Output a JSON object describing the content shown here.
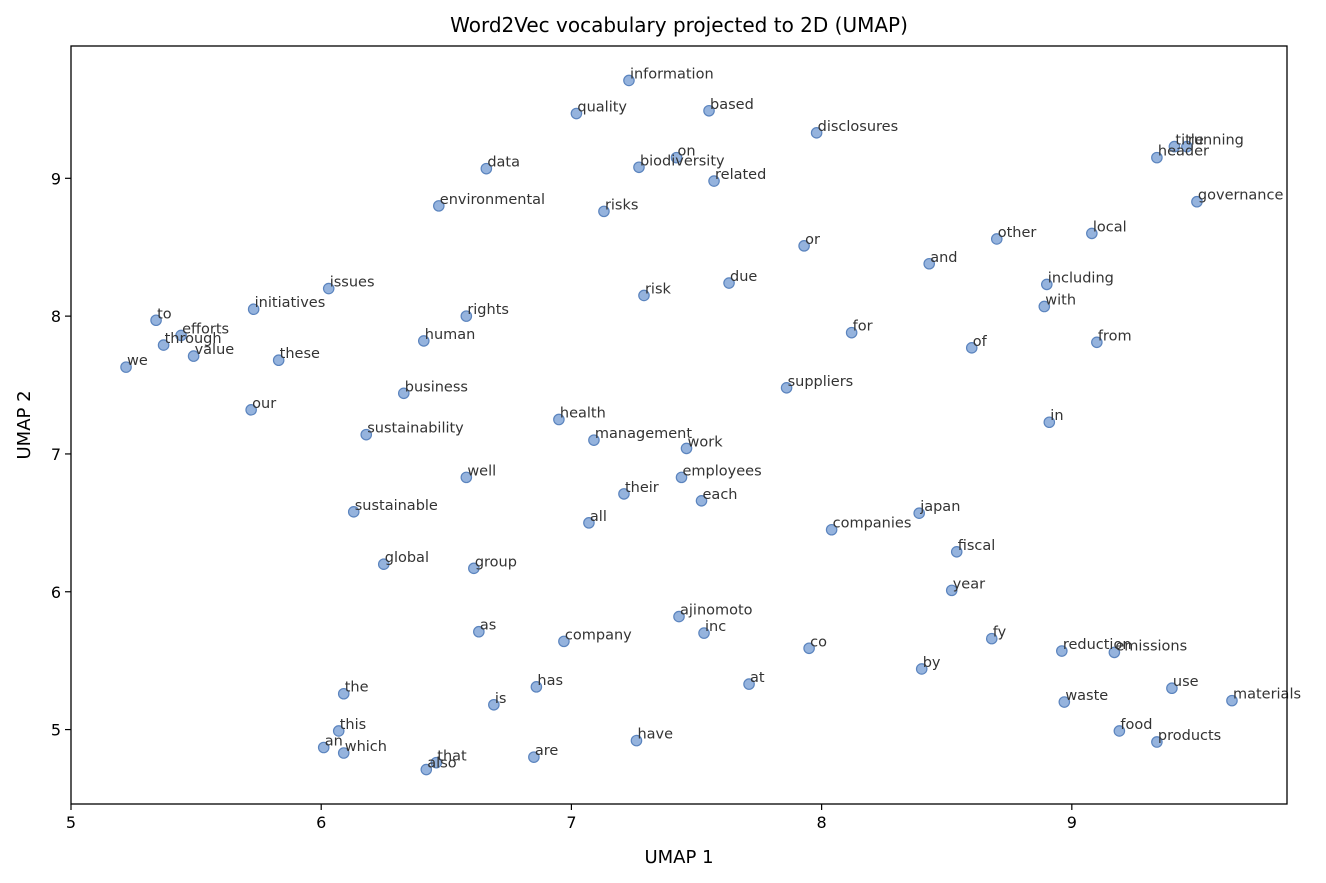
{
  "chart_data": {
    "type": "scatter",
    "title": "Word2Vec vocabulary projected to 2D (UMAP)",
    "xlabel": "UMAP 1",
    "ylabel": "UMAP 2",
    "xlim": [
      5.0,
      9.86
    ],
    "ylim": [
      4.46,
      9.96
    ],
    "xticks": [
      5,
      6,
      7,
      8,
      9
    ],
    "yticks": [
      5,
      6,
      7,
      8,
      9
    ],
    "grid": false,
    "point_color": "#7aa0d4",
    "points": [
      {
        "label": "information",
        "x": 7.23,
        "y": 9.71
      },
      {
        "label": "quality",
        "x": 7.02,
        "y": 9.47
      },
      {
        "label": "based",
        "x": 7.55,
        "y": 9.49
      },
      {
        "label": "disclosures",
        "x": 7.98,
        "y": 9.33
      },
      {
        "label": "on",
        "x": 7.42,
        "y": 9.15
      },
      {
        "label": "biodiversity",
        "x": 7.27,
        "y": 9.08
      },
      {
        "label": "data",
        "x": 6.66,
        "y": 9.07
      },
      {
        "label": "related",
        "x": 7.57,
        "y": 8.98
      },
      {
        "label": "title",
        "x": 9.41,
        "y": 9.23
      },
      {
        "label": "running",
        "x": 9.46,
        "y": 9.23
      },
      {
        "label": "header",
        "x": 9.34,
        "y": 9.15
      },
      {
        "label": "governance",
        "x": 9.5,
        "y": 8.83
      },
      {
        "label": "environmental",
        "x": 6.47,
        "y": 8.8
      },
      {
        "label": "risks",
        "x": 7.13,
        "y": 8.76
      },
      {
        "label": "or",
        "x": 7.93,
        "y": 8.51
      },
      {
        "label": "other",
        "x": 8.7,
        "y": 8.56
      },
      {
        "label": "local",
        "x": 9.08,
        "y": 8.6
      },
      {
        "label": "and",
        "x": 8.43,
        "y": 8.38
      },
      {
        "label": "due",
        "x": 7.63,
        "y": 8.24
      },
      {
        "label": "including",
        "x": 8.9,
        "y": 8.23
      },
      {
        "label": "issues",
        "x": 6.03,
        "y": 8.2
      },
      {
        "label": "risk",
        "x": 7.29,
        "y": 8.15
      },
      {
        "label": "with",
        "x": 8.89,
        "y": 8.07
      },
      {
        "label": "initiatives",
        "x": 5.73,
        "y": 8.05
      },
      {
        "label": "rights",
        "x": 6.58,
        "y": 8.0
      },
      {
        "label": "to",
        "x": 5.34,
        "y": 7.97
      },
      {
        "label": "efforts",
        "x": 5.44,
        "y": 7.86
      },
      {
        "label": "for",
        "x": 8.12,
        "y": 7.88
      },
      {
        "label": "human",
        "x": 6.41,
        "y": 7.82
      },
      {
        "label": "through",
        "x": 5.37,
        "y": 7.79
      },
      {
        "label": "from",
        "x": 9.1,
        "y": 7.81
      },
      {
        "label": "of",
        "x": 8.6,
        "y": 7.77
      },
      {
        "label": "value",
        "x": 5.49,
        "y": 7.71
      },
      {
        "label": "these",
        "x": 5.83,
        "y": 7.68
      },
      {
        "label": "we",
        "x": 5.22,
        "y": 7.63
      },
      {
        "label": "suppliers",
        "x": 7.86,
        "y": 7.48
      },
      {
        "label": "business",
        "x": 6.33,
        "y": 7.44
      },
      {
        "label": "our",
        "x": 5.72,
        "y": 7.32
      },
      {
        "label": "health",
        "x": 6.95,
        "y": 7.25
      },
      {
        "label": "in",
        "x": 8.91,
        "y": 7.23
      },
      {
        "label": "sustainability",
        "x": 6.18,
        "y": 7.14
      },
      {
        "label": "management",
        "x": 7.09,
        "y": 7.1
      },
      {
        "label": "work",
        "x": 7.46,
        "y": 7.04
      },
      {
        "label": "well",
        "x": 6.58,
        "y": 6.83
      },
      {
        "label": "employees",
        "x": 7.44,
        "y": 6.83
      },
      {
        "label": "their",
        "x": 7.21,
        "y": 6.71
      },
      {
        "label": "each",
        "x": 7.52,
        "y": 6.66
      },
      {
        "label": "sustainable",
        "x": 6.13,
        "y": 6.58
      },
      {
        "label": "japan",
        "x": 8.39,
        "y": 6.57
      },
      {
        "label": "all",
        "x": 7.07,
        "y": 6.5
      },
      {
        "label": "companies",
        "x": 8.04,
        "y": 6.45
      },
      {
        "label": "fiscal",
        "x": 8.54,
        "y": 6.29
      },
      {
        "label": "global",
        "x": 6.25,
        "y": 6.2
      },
      {
        "label": "group",
        "x": 6.61,
        "y": 6.17
      },
      {
        "label": "year",
        "x": 8.52,
        "y": 6.01
      },
      {
        "label": "ajinomoto",
        "x": 7.43,
        "y": 5.82
      },
      {
        "label": "as",
        "x": 6.63,
        "y": 5.71
      },
      {
        "label": "inc",
        "x": 7.53,
        "y": 5.7
      },
      {
        "label": "fy",
        "x": 8.68,
        "y": 5.66
      },
      {
        "label": "company",
        "x": 6.97,
        "y": 5.64
      },
      {
        "label": "co",
        "x": 7.95,
        "y": 5.59
      },
      {
        "label": "reduction",
        "x": 8.96,
        "y": 5.57
      },
      {
        "label": "emissions",
        "x": 9.17,
        "y": 5.56
      },
      {
        "label": "by",
        "x": 8.4,
        "y": 5.44
      },
      {
        "label": "at",
        "x": 7.71,
        "y": 5.33
      },
      {
        "label": "has",
        "x": 6.86,
        "y": 5.31
      },
      {
        "label": "use",
        "x": 9.4,
        "y": 5.3
      },
      {
        "label": "the",
        "x": 6.09,
        "y": 5.26
      },
      {
        "label": "materials",
        "x": 9.64,
        "y": 5.21
      },
      {
        "label": "waste",
        "x": 8.97,
        "y": 5.2
      },
      {
        "label": "is",
        "x": 6.69,
        "y": 5.18
      },
      {
        "label": "food",
        "x": 9.19,
        "y": 4.99
      },
      {
        "label": "this",
        "x": 6.07,
        "y": 4.99
      },
      {
        "label": "products",
        "x": 9.34,
        "y": 4.91
      },
      {
        "label": "have",
        "x": 7.26,
        "y": 4.92
      },
      {
        "label": "an",
        "x": 6.01,
        "y": 4.87
      },
      {
        "label": "which",
        "x": 6.09,
        "y": 4.83
      },
      {
        "label": "are",
        "x": 6.85,
        "y": 4.8
      },
      {
        "label": "that",
        "x": 6.46,
        "y": 4.76
      },
      {
        "label": "also",
        "x": 6.42,
        "y": 4.71
      }
    ]
  }
}
